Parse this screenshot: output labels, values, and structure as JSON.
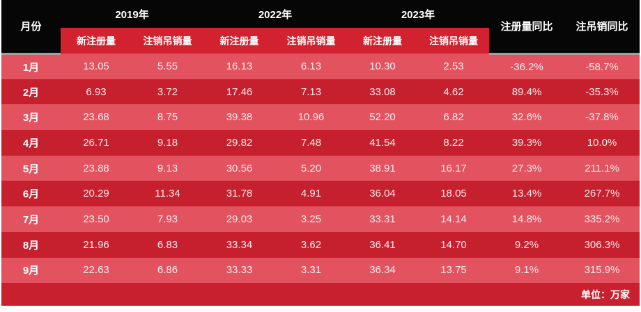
{
  "colors": {
    "header_bg": "#060606",
    "subheader_bg": "#d2222f",
    "row_light": "#e3525f",
    "row_dark": "#c6202f",
    "footer_bg": "#c8202f",
    "separator": "#a0a0a0",
    "text": "#ffffff",
    "num_text": "#fcebec"
  },
  "chart_data": {
    "type": "table",
    "corner_header": "月份",
    "year_groups": [
      {
        "label": "2019年",
        "columns": [
          "新注册量",
          "注销吊销量"
        ]
      },
      {
        "label": "2022年",
        "columns": [
          "新注册量",
          "注销吊销量"
        ]
      },
      {
        "label": "2023年",
        "columns": [
          "新注册量",
          "注销吊销量"
        ]
      }
    ],
    "yoy_columns": [
      "注册量同比",
      "注吊销同比"
    ],
    "rows": [
      {
        "month": "1月",
        "cells": [
          "13.05",
          "5.55",
          "16.13",
          "6.13",
          "10.30",
          "2.53",
          "-36.2%",
          "-58.7%"
        ]
      },
      {
        "month": "2月",
        "cells": [
          "6.93",
          "3.72",
          "17.46",
          "7.13",
          "33.08",
          "4.62",
          "89.4%",
          "-35.3%"
        ]
      },
      {
        "month": "3月",
        "cells": [
          "23.68",
          "8.75",
          "39.38",
          "10.96",
          "52.20",
          "6.82",
          "32.6%",
          "-37.8%"
        ]
      },
      {
        "month": "4月",
        "cells": [
          "26.71",
          "9.18",
          "29.82",
          "7.48",
          "41.54",
          "8.22",
          "39.3%",
          "10.0%"
        ]
      },
      {
        "month": "5月",
        "cells": [
          "23.88",
          "9.13",
          "30.56",
          "5.20",
          "38.91",
          "16.17",
          "27.3%",
          "211.1%"
        ]
      },
      {
        "month": "6月",
        "cells": [
          "20.29",
          "11.34",
          "31.78",
          "4.91",
          "36.04",
          "18.05",
          "13.4%",
          "267.7%"
        ]
      },
      {
        "month": "7月",
        "cells": [
          "23.50",
          "7.93",
          "29.03",
          "3.25",
          "33.31",
          "14.14",
          "14.8%",
          "335.2%"
        ]
      },
      {
        "month": "8月",
        "cells": [
          "21.96",
          "6.83",
          "33.34",
          "3.62",
          "36.41",
          "14.70",
          "9.2%",
          "306.3%"
        ]
      },
      {
        "month": "9月",
        "cells": [
          "22.63",
          "6.86",
          "33.33",
          "3.31",
          "36.34",
          "13.75",
          "9.1%",
          "315.9%"
        ]
      }
    ],
    "unit_note": "单位：万家"
  }
}
